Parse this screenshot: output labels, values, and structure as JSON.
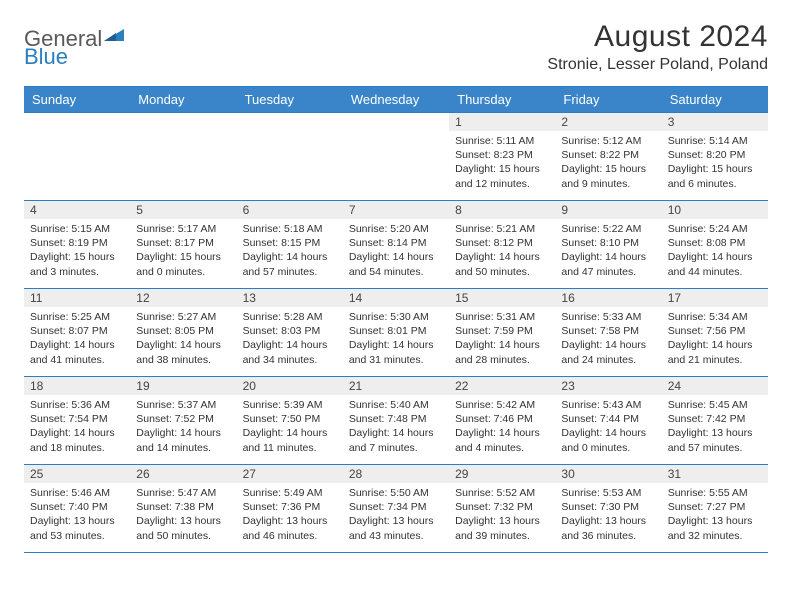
{
  "brand": {
    "part1": "General",
    "part2": "Blue"
  },
  "title": "August 2024",
  "location": "Stronie, Lesser Poland, Poland",
  "colors": {
    "header_bg": "#3a85c9",
    "border": "#2a7fbf",
    "daynum_bg": "#eeeeee",
    "text": "#333333",
    "logo_gray": "#5a5a5a",
    "logo_blue": "#2a7fbf",
    "page_bg": "#ffffff"
  },
  "weekdays": [
    "Sunday",
    "Monday",
    "Tuesday",
    "Wednesday",
    "Thursday",
    "Friday",
    "Saturday"
  ],
  "weeks": [
    [
      null,
      null,
      null,
      null,
      {
        "n": "1",
        "sr": "5:11 AM",
        "ss": "8:23 PM",
        "dl": "15 hours and 12 minutes."
      },
      {
        "n": "2",
        "sr": "5:12 AM",
        "ss": "8:22 PM",
        "dl": "15 hours and 9 minutes."
      },
      {
        "n": "3",
        "sr": "5:14 AM",
        "ss": "8:20 PM",
        "dl": "15 hours and 6 minutes."
      }
    ],
    [
      {
        "n": "4",
        "sr": "5:15 AM",
        "ss": "8:19 PM",
        "dl": "15 hours and 3 minutes."
      },
      {
        "n": "5",
        "sr": "5:17 AM",
        "ss": "8:17 PM",
        "dl": "15 hours and 0 minutes."
      },
      {
        "n": "6",
        "sr": "5:18 AM",
        "ss": "8:15 PM",
        "dl": "14 hours and 57 minutes."
      },
      {
        "n": "7",
        "sr": "5:20 AM",
        "ss": "8:14 PM",
        "dl": "14 hours and 54 minutes."
      },
      {
        "n": "8",
        "sr": "5:21 AM",
        "ss": "8:12 PM",
        "dl": "14 hours and 50 minutes."
      },
      {
        "n": "9",
        "sr": "5:22 AM",
        "ss": "8:10 PM",
        "dl": "14 hours and 47 minutes."
      },
      {
        "n": "10",
        "sr": "5:24 AM",
        "ss": "8:08 PM",
        "dl": "14 hours and 44 minutes."
      }
    ],
    [
      {
        "n": "11",
        "sr": "5:25 AM",
        "ss": "8:07 PM",
        "dl": "14 hours and 41 minutes."
      },
      {
        "n": "12",
        "sr": "5:27 AM",
        "ss": "8:05 PM",
        "dl": "14 hours and 38 minutes."
      },
      {
        "n": "13",
        "sr": "5:28 AM",
        "ss": "8:03 PM",
        "dl": "14 hours and 34 minutes."
      },
      {
        "n": "14",
        "sr": "5:30 AM",
        "ss": "8:01 PM",
        "dl": "14 hours and 31 minutes."
      },
      {
        "n": "15",
        "sr": "5:31 AM",
        "ss": "7:59 PM",
        "dl": "14 hours and 28 minutes."
      },
      {
        "n": "16",
        "sr": "5:33 AM",
        "ss": "7:58 PM",
        "dl": "14 hours and 24 minutes."
      },
      {
        "n": "17",
        "sr": "5:34 AM",
        "ss": "7:56 PM",
        "dl": "14 hours and 21 minutes."
      }
    ],
    [
      {
        "n": "18",
        "sr": "5:36 AM",
        "ss": "7:54 PM",
        "dl": "14 hours and 18 minutes."
      },
      {
        "n": "19",
        "sr": "5:37 AM",
        "ss": "7:52 PM",
        "dl": "14 hours and 14 minutes."
      },
      {
        "n": "20",
        "sr": "5:39 AM",
        "ss": "7:50 PM",
        "dl": "14 hours and 11 minutes."
      },
      {
        "n": "21",
        "sr": "5:40 AM",
        "ss": "7:48 PM",
        "dl": "14 hours and 7 minutes."
      },
      {
        "n": "22",
        "sr": "5:42 AM",
        "ss": "7:46 PM",
        "dl": "14 hours and 4 minutes."
      },
      {
        "n": "23",
        "sr": "5:43 AM",
        "ss": "7:44 PM",
        "dl": "14 hours and 0 minutes."
      },
      {
        "n": "24",
        "sr": "5:45 AM",
        "ss": "7:42 PM",
        "dl": "13 hours and 57 minutes."
      }
    ],
    [
      {
        "n": "25",
        "sr": "5:46 AM",
        "ss": "7:40 PM",
        "dl": "13 hours and 53 minutes."
      },
      {
        "n": "26",
        "sr": "5:47 AM",
        "ss": "7:38 PM",
        "dl": "13 hours and 50 minutes."
      },
      {
        "n": "27",
        "sr": "5:49 AM",
        "ss": "7:36 PM",
        "dl": "13 hours and 46 minutes."
      },
      {
        "n": "28",
        "sr": "5:50 AM",
        "ss": "7:34 PM",
        "dl": "13 hours and 43 minutes."
      },
      {
        "n": "29",
        "sr": "5:52 AM",
        "ss": "7:32 PM",
        "dl": "13 hours and 39 minutes."
      },
      {
        "n": "30",
        "sr": "5:53 AM",
        "ss": "7:30 PM",
        "dl": "13 hours and 36 minutes."
      },
      {
        "n": "31",
        "sr": "5:55 AM",
        "ss": "7:27 PM",
        "dl": "13 hours and 32 minutes."
      }
    ]
  ],
  "labels": {
    "sunrise": "Sunrise: ",
    "sunset": "Sunset: ",
    "daylight": "Daylight: "
  }
}
